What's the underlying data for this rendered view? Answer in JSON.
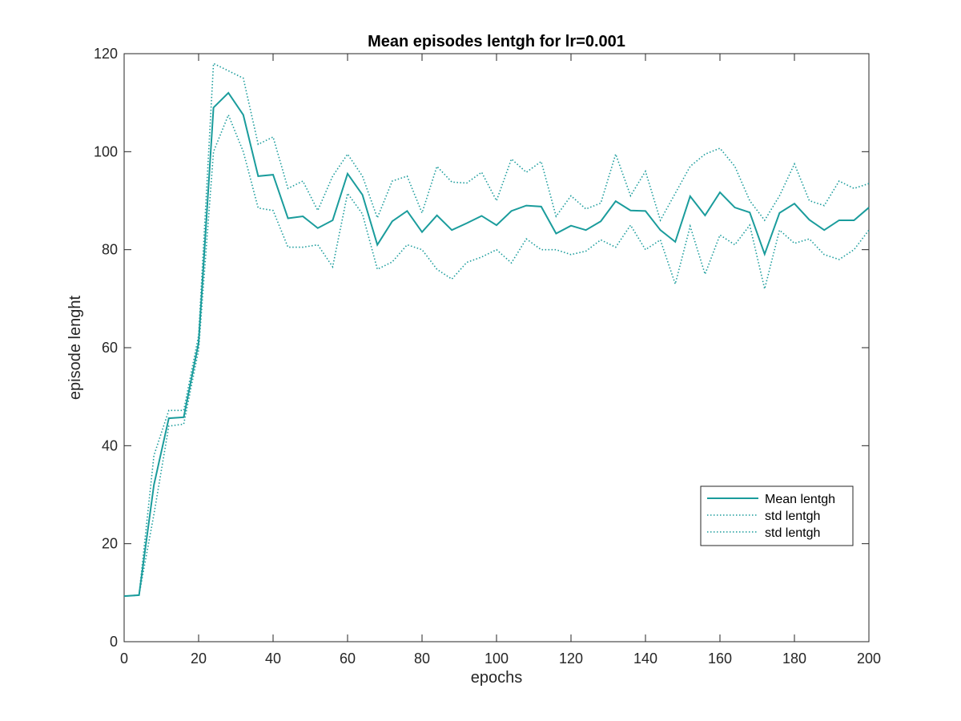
{
  "chart_data": {
    "type": "line",
    "title": "Mean episodes lentgh for lr=0.001",
    "xlabel": "epochs",
    "ylabel": "episode lenght",
    "xlim": [
      0,
      200
    ],
    "ylim": [
      0,
      120
    ],
    "xticks": [
      0,
      20,
      40,
      60,
      80,
      100,
      120,
      140,
      160,
      180,
      200
    ],
    "yticks": [
      0,
      20,
      40,
      60,
      80,
      100,
      120
    ],
    "grid": false,
    "legend_position": "bottom-right",
    "color": "#1a9c9c",
    "x": [
      0,
      4,
      8,
      12,
      16,
      20,
      24,
      28,
      32,
      36,
      40,
      44,
      48,
      52,
      56,
      60,
      64,
      68,
      72,
      76,
      80,
      84,
      88,
      92,
      96,
      100,
      104,
      108,
      112,
      116,
      120,
      124,
      128,
      132,
      136,
      140,
      144,
      148,
      152,
      156,
      160,
      164,
      168,
      172,
      176,
      180,
      184,
      188,
      192,
      196,
      200
    ],
    "series": [
      {
        "name": "Mean lentgh",
        "style": "solid",
        "values": [
          9.3,
          9.5,
          32.0,
          45.6,
          45.8,
          61.0,
          109.0,
          112.0,
          107.5,
          95.0,
          95.3,
          86.4,
          86.8,
          84.4,
          86.0,
          95.5,
          91.2,
          81.0,
          85.8,
          87.9,
          83.6,
          87.0,
          84.0,
          85.4,
          86.9,
          85.0,
          87.9,
          89.0,
          88.8,
          83.3,
          84.9,
          84.0,
          85.8,
          89.9,
          88.0,
          87.9,
          84.0,
          81.6,
          90.9,
          87.0,
          91.7,
          88.6,
          87.6,
          79.1,
          87.5,
          89.4,
          86.1,
          84.0,
          86.0,
          86.0,
          88.6
        ]
      },
      {
        "name": "std lentgh",
        "style": "dotted",
        "values": [
          9.3,
          9.5,
          38.0,
          47.2,
          47.2,
          62.5,
          118.0,
          116.5,
          115.0,
          101.5,
          103.0,
          92.5,
          94.0,
          88.0,
          95.0,
          99.5,
          95.0,
          86.5,
          94.0,
          95.0,
          87.5,
          97.0,
          93.8,
          93.6,
          95.8,
          90.0,
          98.5,
          95.8,
          98.0,
          86.8,
          91.0,
          88.3,
          89.5,
          99.5,
          91.0,
          96.0,
          86.0,
          91.5,
          97.0,
          99.5,
          100.7,
          97.0,
          90.0,
          86.0,
          91.0,
          97.5,
          90.0,
          89.0,
          94.0,
          92.5,
          93.5
        ]
      },
      {
        "name": "std lentgh",
        "style": "dotted",
        "values": [
          9.3,
          9.5,
          26.0,
          44.0,
          44.4,
          59.5,
          100.0,
          107.5,
          100.0,
          88.5,
          88.0,
          80.5,
          80.5,
          81.0,
          76.5,
          91.5,
          87.3,
          76.0,
          77.5,
          81.0,
          80.0,
          76.0,
          74.0,
          77.4,
          78.5,
          80.0,
          77.3,
          82.2,
          80.0,
          80.0,
          79.0,
          79.7,
          82.0,
          80.5,
          85.0,
          80.0,
          82.0,
          73.0,
          84.8,
          75.0,
          83.0,
          81.0,
          85.0,
          72.0,
          84.0,
          81.3,
          82.2,
          79.0,
          78.0,
          80.0,
          84.0
        ]
      }
    ]
  }
}
